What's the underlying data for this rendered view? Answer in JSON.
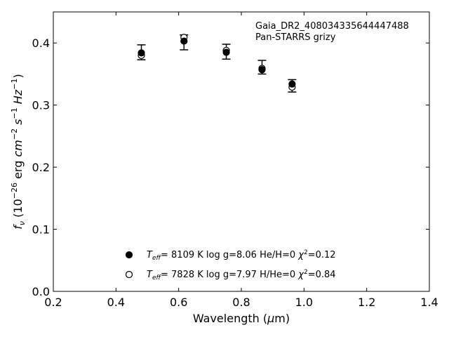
{
  "chart_data": {
    "type": "scatter",
    "xlabel_main": "Wavelength (",
    "xlabel_mu": "μ",
    "xlabel_end": "m)",
    "ylabel": {
      "f": "f",
      "nu": "ν",
      "open": " (10",
      "e1": "−26",
      "erg": " erg ",
      "cm": "cm",
      "e2": "−2",
      "s": " s",
      "e3": "−1",
      "hz": " Hz",
      "e4": "−1",
      "close": ")"
    },
    "xlim": [
      0.2,
      1.4
    ],
    "ylim": [
      0.0,
      0.45
    ],
    "xticks": [
      "0.2",
      "0.4",
      "0.6",
      "0.8",
      "1.0",
      "1.2",
      "1.4"
    ],
    "yticks": [
      "0.0",
      "0.1",
      "0.2",
      "0.3",
      "0.4"
    ],
    "annotation": [
      "Gaia_DR2_408034335644447488",
      "Pan-STARRS grizy"
    ],
    "observed": [
      {
        "x": 0.481,
        "y": 0.385,
        "err": 0.012
      },
      {
        "x": 0.617,
        "y": 0.401,
        "err": 0.012
      },
      {
        "x": 0.752,
        "y": 0.386,
        "err": 0.012
      },
      {
        "x": 0.866,
        "y": 0.361,
        "err": 0.011
      },
      {
        "x": 0.962,
        "y": 0.331,
        "err": 0.01
      }
    ],
    "series": [
      {
        "marker": "filled",
        "values": [
          0.384,
          0.403,
          0.385,
          0.357,
          0.334
        ],
        "legend": {
          "teff": "T",
          "sub": "eff",
          "rest": "=  8109 K  log g=8.06  He/H=0  ",
          "chi": "χ",
          "sup": "2",
          "chi_val": "=0.12"
        }
      },
      {
        "marker": "open",
        "values": [
          0.38,
          0.409,
          0.388,
          0.359,
          0.329
        ],
        "legend": {
          "teff": "T",
          "sub": "eff",
          "rest": "=  7828 K  log g=7.97  H/He=0  ",
          "chi": "χ",
          "sup": "2",
          "chi_val": "=0.84"
        }
      }
    ]
  }
}
